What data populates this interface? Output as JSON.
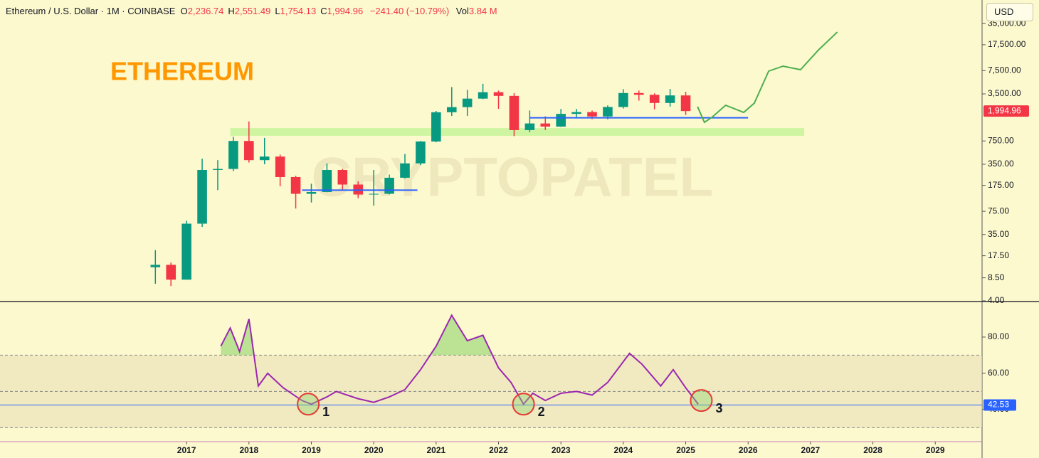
{
  "header": {
    "symbol": "Ethereum / U.S. Dollar · 1M · COINBASE",
    "fields": [
      {
        "label": "O",
        "value": "2,236.74"
      },
      {
        "label": "H",
        "value": "2,551.49"
      },
      {
        "label": "L",
        "value": "1,754.13"
      },
      {
        "label": "C",
        "value": "1,994.96"
      }
    ],
    "change": "−241.40 (−10.79%)",
    "volume": {
      "label": "Vol",
      "value": "3.84 M"
    }
  },
  "currency": "USD",
  "watermark": "CRYPTOPATEL",
  "chart_data": [
    {
      "type": "candlestick",
      "title": "ETHEREUM",
      "log_scale": true,
      "x": [
        2016.5,
        2016.75,
        2017,
        2017.25,
        2017.5,
        2017.75,
        2018,
        2018.25,
        2018.5,
        2018.75,
        2019,
        2019.25,
        2019.5,
        2019.75,
        2020,
        2020.25,
        2020.5,
        2020.75,
        2021,
        2021.25,
        2021.5,
        2021.75,
        2022,
        2022.25,
        2022.5,
        2022.75,
        2023,
        2023.25,
        2023.5,
        2023.75,
        2024,
        2024.25,
        2024.5,
        2024.75,
        2025
      ],
      "open": [
        12,
        13,
        8,
        50,
        290,
        300,
        750,
        400,
        450,
        230,
        133,
        141,
        290,
        180,
        130,
        133,
        225,
        360,
        737,
        1920,
        2270,
        3000,
        3700,
        3280,
        1070,
        1330,
        1200,
        1820,
        1930,
        1670,
        2280,
        3600,
        3400,
        2600,
        3330
      ],
      "high": [
        21,
        14,
        55,
        420,
        400,
        860,
        1420,
        830,
        480,
        240,
        185,
        360,
        300,
        200,
        290,
        250,
        490,
        750,
        2000,
        4380,
        4000,
        4870,
        3900,
        3580,
        2030,
        1680,
        2140,
        2140,
        2030,
        2400,
        4090,
        3900,
        3560,
        4110,
        3750
      ],
      "low": [
        7,
        6.5,
        8,
        45,
        150,
        280,
        370,
        350,
        170,
        82,
        100,
        140,
        150,
        115,
        90,
        130,
        220,
        340,
        720,
        1700,
        1700,
        2950,
        2150,
        880,
        1000,
        1070,
        1190,
        1620,
        1530,
        1520,
        2170,
        2810,
        2110,
        2310,
        1754.13
      ],
      "close": [
        13,
        8,
        50,
        290,
        300,
        750,
        400,
        450,
        230,
        133,
        141,
        290,
        180,
        130,
        133,
        225,
        360,
        737,
        1920,
        2270,
        3000,
        3700,
        3280,
        1070,
        1330,
        1200,
        1820,
        1930,
        1670,
        2280,
        3600,
        3400,
        2600,
        3330,
        1994.96
      ],
      "up_color": "#089981",
      "down_color": "#f23645",
      "xlim": [
        2014.01,
        2029.75
      ],
      "ylim": [
        4,
        75700
      ],
      "yticks": [
        {
          "value": 35000,
          "label": "35,000.00"
        },
        {
          "value": 17500,
          "label": "17,500.00"
        },
        {
          "value": 7500,
          "label": "7,500.00"
        },
        {
          "value": 3500,
          "label": "3,500.00"
        },
        {
          "value": 750,
          "label": "750.00"
        },
        {
          "value": 350,
          "label": "350.00"
        },
        {
          "value": 175,
          "label": "175.00"
        },
        {
          "value": 75,
          "label": "75.00"
        },
        {
          "value": 35,
          "label": "35.00"
        },
        {
          "value": 17.5,
          "label": "17.50"
        },
        {
          "value": 8.5,
          "label": "8.50"
        },
        {
          "value": 4,
          "label": "4.00"
        }
      ],
      "last_price": {
        "value": 1994.96,
        "label": "1,994.96"
      },
      "support_lines": [
        {
          "y": 150,
          "x": [
            2018.85,
            2020.7
          ],
          "color": "#2962ff"
        },
        {
          "y": 1600,
          "x": [
            2022.5,
            2026.0
          ],
          "color": "#2962ff"
        }
      ],
      "zone": {
        "y": [
          887,
          1145
        ],
        "x": [
          2017.7,
          2026.9
        ],
        "color": "#c8f59a"
      },
      "projection": {
        "color": "#4caf50",
        "x": [
          2025.19,
          2025.3,
          2025.42,
          2025.64,
          2025.93,
          2026.1,
          2026.33,
          2026.56,
          2026.84,
          2027.13,
          2027.43
        ],
        "values": [
          2300,
          1380,
          1625,
          2415,
          1910,
          2590,
          7380,
          8690,
          7730,
          14800,
          26500
        ]
      }
    },
    {
      "type": "line",
      "color": "#9c27b0",
      "x": [
        2017.55,
        2017.7,
        2017.85,
        2018.0,
        2018.15,
        2018.3,
        2018.55,
        2018.85,
        2019.0,
        2019.25,
        2019.4,
        2019.75,
        2020.0,
        2020.25,
        2020.5,
        2020.75,
        2021.0,
        2021.25,
        2021.5,
        2021.75,
        2022.0,
        2022.2,
        2022.4,
        2022.55,
        2022.75,
        2023.0,
        2023.25,
        2023.5,
        2023.75,
        2024.1,
        2024.3,
        2024.6,
        2024.8,
        2025.0,
        2025.2
      ],
      "values": [
        75,
        85,
        72,
        90,
        53,
        60,
        52,
        45,
        43,
        47,
        50,
        46,
        44,
        47,
        51,
        62,
        75,
        92,
        78,
        81,
        63,
        55,
        43,
        49,
        45,
        49,
        50,
        48,
        55,
        71,
        65,
        53,
        62,
        52,
        43
      ],
      "xlim": [
        2014.01,
        2029.75
      ],
      "ylim": [
        22.7,
        99.2
      ],
      "yticks": [
        {
          "value": 80,
          "label": "80.00"
        },
        {
          "value": 60,
          "label": "60.00"
        },
        {
          "value": 40,
          "label": "40.00"
        }
      ],
      "band": [
        30,
        70
      ],
      "midline": 50,
      "last_value": {
        "value": 42.53,
        "label": "42.53"
      },
      "xticks": [
        2017,
        2018,
        2019,
        2020,
        2021,
        2022,
        2023,
        2024,
        2025,
        2026,
        2027,
        2028,
        2029
      ],
      "annotations": [
        {
          "text": "1",
          "x": 2018.95,
          "y": 43
        },
        {
          "text": "2",
          "x": 2022.4,
          "y": 43
        },
        {
          "text": "3",
          "x": 2025.25,
          "y": 45
        }
      ]
    }
  ]
}
